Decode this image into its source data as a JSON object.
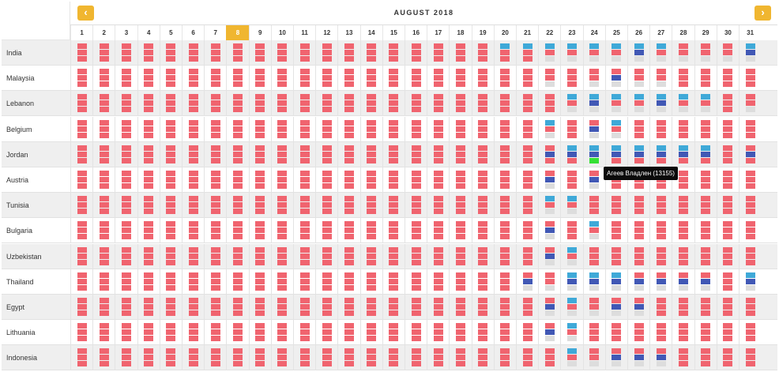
{
  "calendar": {
    "month_label": "AUGUST 2018",
    "prev_label": "‹",
    "next_label": "›",
    "today_day": 8,
    "days": [
      1,
      2,
      3,
      4,
      5,
      6,
      7,
      8,
      9,
      10,
      11,
      12,
      13,
      14,
      15,
      16,
      17,
      18,
      19,
      20,
      21,
      22,
      23,
      24,
      25,
      26,
      27,
      28,
      29,
      30,
      31
    ]
  },
  "colors": {
    "booked": "#f0646f",
    "available_blue": "#3fa9d8",
    "selected_dark_blue": "#4158b5",
    "empty_gray": "#dddddd",
    "highlight_green": "#36e036",
    "today_orange": "#f0b630"
  },
  "legend_codes": {
    "r": "booked",
    "b": "available_blue",
    "d": "selected_dark_blue",
    "g": "empty_gray",
    "n": "highlight_green"
  },
  "countries": [
    {
      "name": "India",
      "overrides": {
        "20": "brr",
        "21": "brr",
        "22": "brg",
        "23": "brg",
        "24": "brg",
        "25": "brg",
        "26": "bdg",
        "27": "brg",
        "28": "rrg",
        "29": "rrg",
        "30": "rrg",
        "31": "bdg"
      }
    },
    {
      "name": "Malaysia",
      "overrides": {
        "22": "rrg",
        "24": "rrg",
        "25": "rdg",
        "26": "rrg",
        "27": "rrg"
      }
    },
    {
      "name": "Lebanon",
      "overrides": {
        "23": "brg",
        "24": "bdg",
        "25": "brg",
        "26": "brg",
        "27": "bdg",
        "28": "brg",
        "29": "brg",
        "31": "rrg"
      }
    },
    {
      "name": "Belgium",
      "overrides": {
        "22": "brg",
        "24": "rdg",
        "25": "brg"
      }
    },
    {
      "name": "Jordan",
      "overrides": {
        "22": "rdr",
        "23": "bdr",
        "24": "bdn",
        "25": "bdr",
        "26": "bdr",
        "27": "bdr",
        "28": "bdr",
        "29": "bdr",
        "31": "rdr"
      }
    },
    {
      "name": "Austria",
      "overrides": {
        "22": "rdg",
        "24": "rdg"
      }
    },
    {
      "name": "Tunisia",
      "overrides": {
        "22": "brg",
        "23": "brg"
      }
    },
    {
      "name": "Bulgaria",
      "overrides": {
        "22": "rdg",
        "24": "brg"
      }
    },
    {
      "name": "Uzbekistan",
      "overrides": {
        "22": "rdg",
        "23": "brg"
      }
    },
    {
      "name": "Thailand",
      "overrides": {
        "21": "rdg",
        "22": "rrg",
        "23": "bdg",
        "24": "bdg",
        "25": "bdg",
        "26": "rdg",
        "27": "rdg",
        "28": "rdg",
        "29": "rdg",
        "31": "bdg"
      }
    },
    {
      "name": "Egypt",
      "overrides": {
        "22": "rdg",
        "23": "brg",
        "24": "rrg",
        "25": "rdg",
        "26": "rdg"
      }
    },
    {
      "name": "Lithuania",
      "overrides": {
        "22": "rdg",
        "23": "brg"
      }
    },
    {
      "name": "Indonesia",
      "overrides": {
        "23": "brg",
        "24": "rrg",
        "25": "rdg",
        "26": "rdg",
        "27": "rdg"
      }
    }
  ],
  "tooltip": {
    "text": "Агеев Владлен (13155)"
  }
}
